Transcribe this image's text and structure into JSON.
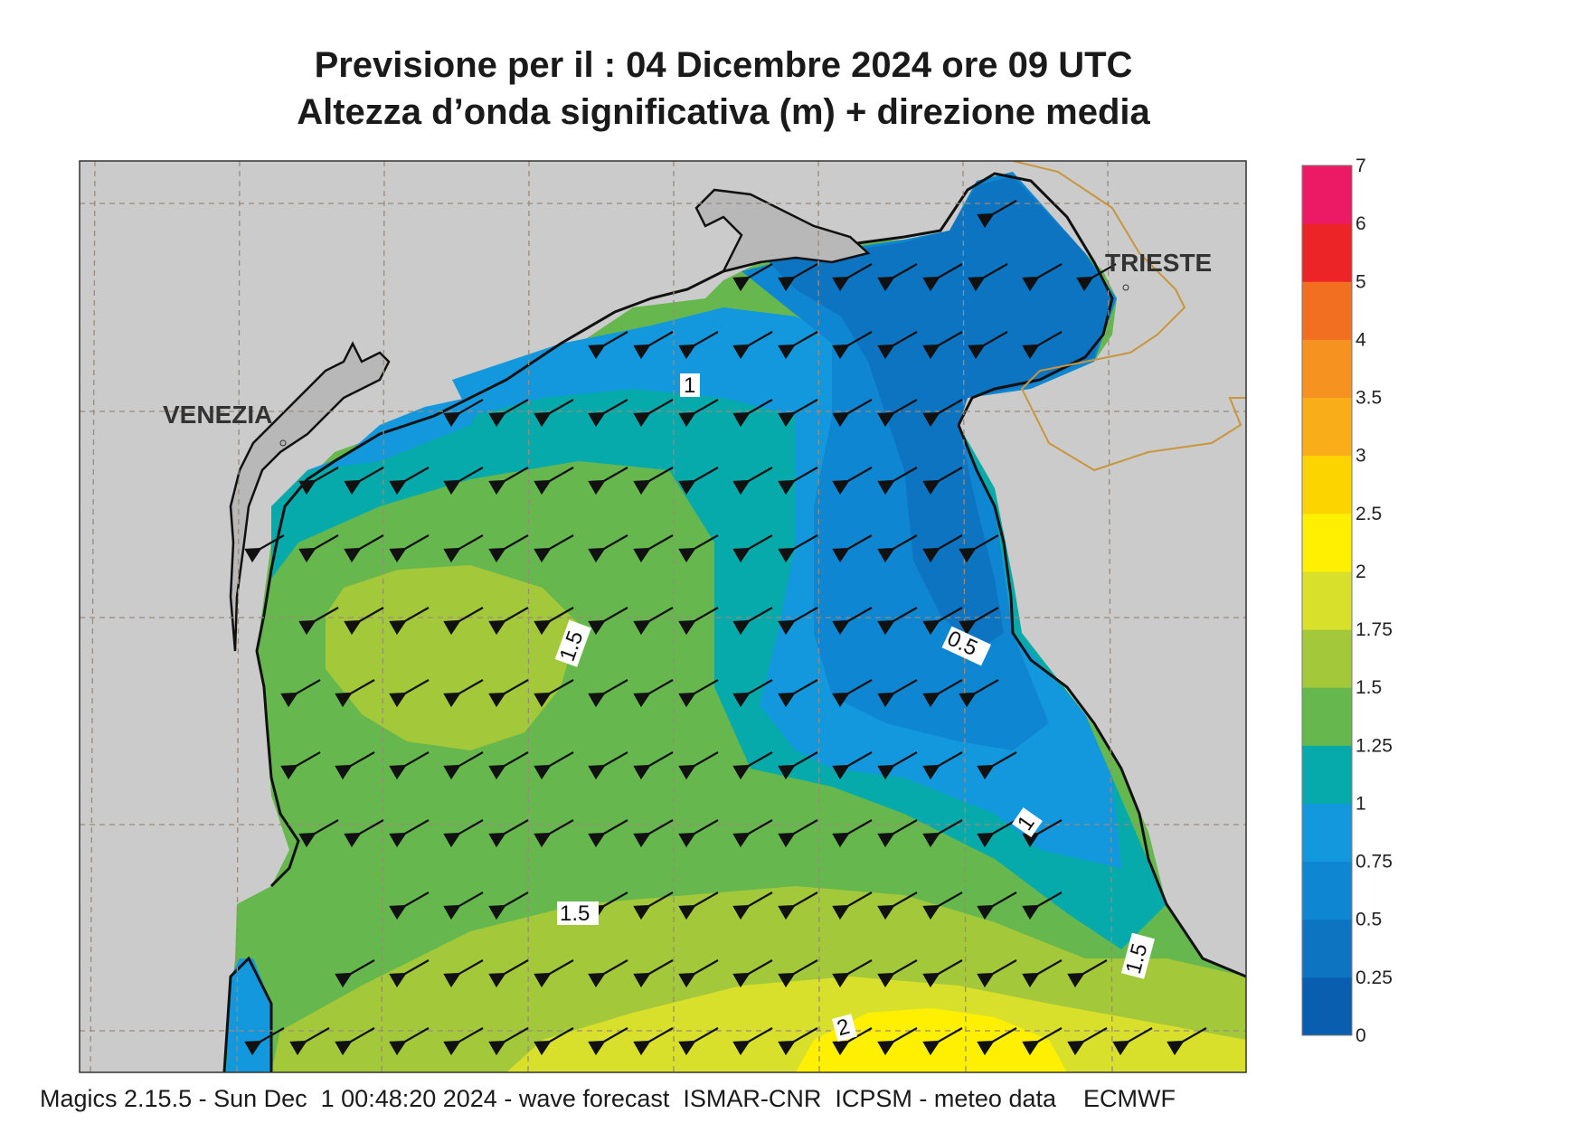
{
  "title_line1": "Previsione per il  :  04 Dicembre  2024   ore 09 UTC",
  "title_line2": "Altezza d’onda significativa (m) + direzione media",
  "footer": "Magics 2.15.5 - Sun Dec  1 00:48:20 2024 - wave forecast  ISMAR-CNR  ICPSM - meteo data    ECMWF",
  "cities": [
    "VENEZIA",
    "TRIESTE"
  ],
  "contour_labels": [
    "1",
    "1.5",
    "0.5",
    "1",
    "1.5",
    "1.5",
    "2"
  ],
  "colorbar": {
    "ticks": [
      "0",
      "0.25",
      "0.5",
      "0.75",
      "1",
      "1.25",
      "1.5",
      "1.75",
      "2",
      "2.5",
      "3",
      "3.5",
      "4",
      "5",
      "6",
      "7"
    ],
    "colors": [
      "#0a5eb0",
      "#0d74c2",
      "#0f86d2",
      "#1498dd",
      "#06aaab",
      "#66b84e",
      "#a3c83a",
      "#d8e02c",
      "#fef000",
      "#fcd400",
      "#f9ad18",
      "#f6921f",
      "#f26f22",
      "#ec2427",
      "#ec1a64"
    ]
  },
  "wave_direction": "south-west"
}
